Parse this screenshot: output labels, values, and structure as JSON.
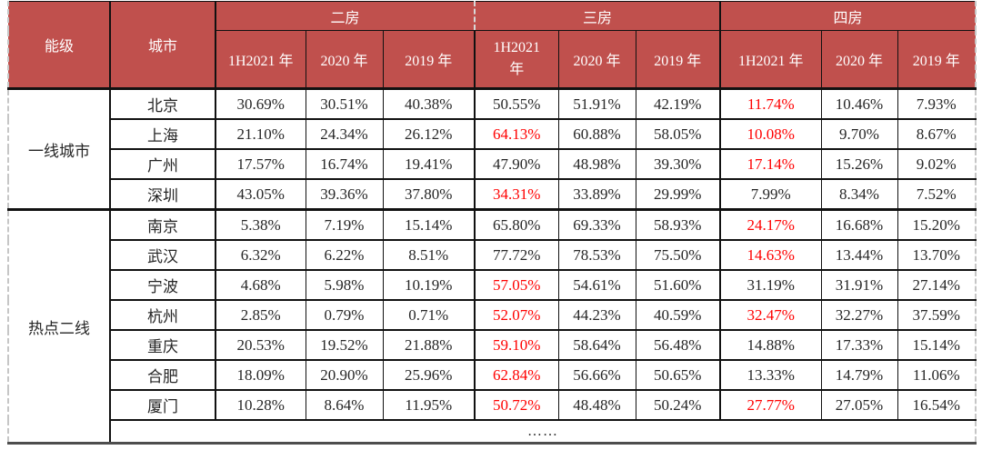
{
  "header": {
    "level_label": "能级",
    "city_label": "城市",
    "group_labels": [
      "二房",
      "三房",
      "四房"
    ],
    "year_labels": [
      "1H2021 年",
      "2020 年",
      "2019 年"
    ]
  },
  "tiers": [
    {
      "label": "一线城市",
      "span": 4
    },
    {
      "label": "热点二线",
      "span": 8
    }
  ],
  "footer_text": "……",
  "colors": {
    "header_bg": "#c0504d",
    "header_text": "#ffffff",
    "highlight_red": "#ff0000",
    "body_text": "#262626",
    "border": "#111111",
    "outer_dashed_border": "#c6c6c6",
    "bottom_border": "#4d4d4d"
  },
  "chart_data": {
    "type": "table",
    "title": "",
    "column_groups": [
      "二房",
      "三房",
      "四房"
    ],
    "sub_columns": [
      "1H2021年",
      "2020年",
      "2019年"
    ],
    "row_tiers": [
      "一线城市",
      "热点二线"
    ],
    "legend_note": "red values = highlighted cells",
    "rows": [
      {
        "tier": "一线城市",
        "city": "北京",
        "values": [
          "30.69%",
          "30.51%",
          "40.38%",
          "50.55%",
          "51.91%",
          "42.19%",
          "11.74%",
          "10.46%",
          "7.93%"
        ],
        "red": [
          6
        ]
      },
      {
        "tier": "一线城市",
        "city": "上海",
        "values": [
          "21.10%",
          "24.34%",
          "26.12%",
          "64.13%",
          "60.88%",
          "58.05%",
          "10.08%",
          "9.70%",
          "8.67%"
        ],
        "red": [
          3,
          6
        ]
      },
      {
        "tier": "一线城市",
        "city": "广州",
        "values": [
          "17.57%",
          "16.74%",
          "19.41%",
          "47.90%",
          "48.98%",
          "39.30%",
          "17.14%",
          "15.26%",
          "9.02%"
        ],
        "red": [
          6
        ]
      },
      {
        "tier": "一线城市",
        "city": "深圳",
        "values": [
          "43.05%",
          "39.36%",
          "37.80%",
          "34.31%",
          "33.89%",
          "29.99%",
          "7.99%",
          "8.34%",
          "7.52%"
        ],
        "red": [
          3
        ]
      },
      {
        "tier": "热点二线",
        "city": "南京",
        "values": [
          "5.38%",
          "7.19%",
          "15.14%",
          "65.80%",
          "69.33%",
          "58.93%",
          "24.17%",
          "16.68%",
          "15.20%"
        ],
        "red": [
          6
        ]
      },
      {
        "tier": "热点二线",
        "city": "武汉",
        "values": [
          "6.32%",
          "6.22%",
          "8.51%",
          "77.72%",
          "78.53%",
          "75.50%",
          "14.63%",
          "13.44%",
          "13.70%"
        ],
        "red": [
          6
        ]
      },
      {
        "tier": "热点二线",
        "city": "宁波",
        "values": [
          "4.68%",
          "5.98%",
          "10.19%",
          "57.05%",
          "54.61%",
          "51.60%",
          "31.19%",
          "31.91%",
          "27.14%"
        ],
        "red": [
          3
        ]
      },
      {
        "tier": "热点二线",
        "city": "杭州",
        "values": [
          "2.85%",
          "0.79%",
          "0.71%",
          "52.07%",
          "44.23%",
          "40.59%",
          "32.47%",
          "32.27%",
          "37.59%"
        ],
        "red": [
          3,
          6
        ]
      },
      {
        "tier": "热点二线",
        "city": "重庆",
        "values": [
          "20.53%",
          "19.52%",
          "21.88%",
          "59.10%",
          "58.64%",
          "56.48%",
          "14.88%",
          "17.33%",
          "15.14%"
        ],
        "red": [
          3
        ]
      },
      {
        "tier": "热点二线",
        "city": "合肥",
        "values": [
          "18.09%",
          "20.90%",
          "25.96%",
          "62.84%",
          "56.66%",
          "50.65%",
          "13.33%",
          "14.79%",
          "11.06%"
        ],
        "red": [
          3
        ]
      },
      {
        "tier": "热点二线",
        "city": "厦门",
        "values": [
          "10.28%",
          "8.64%",
          "11.95%",
          "50.72%",
          "48.48%",
          "50.24%",
          "27.77%",
          "27.05%",
          "16.54%"
        ],
        "red": [
          3,
          6
        ]
      }
    ]
  }
}
